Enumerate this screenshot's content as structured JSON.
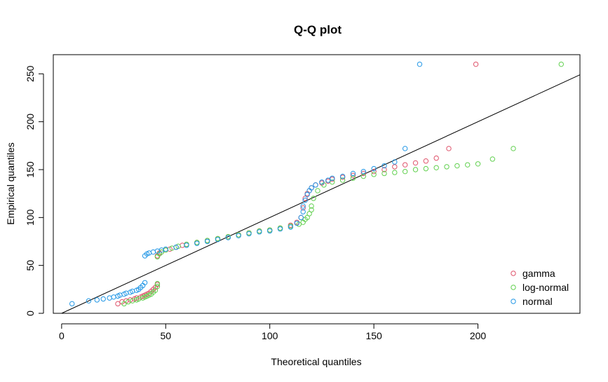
{
  "chart_data": {
    "type": "scatter",
    "title": "Q-Q plot",
    "xlabel": "Theoretical quantiles",
    "ylabel": "Empirical quantiles",
    "xlim": [
      -4,
      249
    ],
    "ylim": [
      0,
      270
    ],
    "xticks": [
      0,
      50,
      100,
      150,
      200
    ],
    "yticks": [
      0,
      50,
      100,
      150,
      200,
      250
    ],
    "grid": false,
    "legend_position": "bottom-right",
    "reference_line": {
      "from": [
        0,
        0
      ],
      "to": [
        249,
        249
      ],
      "color": "#000000"
    },
    "series": [
      {
        "name": "gamma",
        "color": "#DF536B",
        "points": [
          [
            27,
            10
          ],
          [
            29,
            12
          ],
          [
            31,
            13
          ],
          [
            33,
            14
          ],
          [
            35,
            15
          ],
          [
            36,
            16
          ],
          [
            38,
            17
          ],
          [
            39,
            18
          ],
          [
            40,
            19
          ],
          [
            41,
            20
          ],
          [
            42,
            21
          ],
          [
            43,
            23
          ],
          [
            44,
            25
          ],
          [
            45,
            27
          ],
          [
            46,
            30
          ],
          [
            46,
            60
          ],
          [
            47,
            63
          ],
          [
            48,
            64
          ],
          [
            50,
            66
          ],
          [
            52,
            67
          ],
          [
            55,
            69
          ],
          [
            58,
            71
          ],
          [
            60,
            72
          ],
          [
            65,
            74
          ],
          [
            70,
            76
          ],
          [
            75,
            78
          ],
          [
            80,
            80
          ],
          [
            85,
            82
          ],
          [
            90,
            84
          ],
          [
            95,
            86
          ],
          [
            100,
            87
          ],
          [
            105,
            89
          ],
          [
            110,
            92
          ],
          [
            113,
            95
          ],
          [
            115,
            100
          ],
          [
            116,
            110
          ],
          [
            117,
            120
          ],
          [
            118,
            125
          ],
          [
            119,
            128
          ],
          [
            120,
            131
          ],
          [
            122,
            134
          ],
          [
            125,
            136
          ],
          [
            128,
            138
          ],
          [
            130,
            140
          ],
          [
            135,
            142
          ],
          [
            140,
            144
          ],
          [
            145,
            146
          ],
          [
            150,
            148
          ],
          [
            155,
            150
          ],
          [
            160,
            153
          ],
          [
            165,
            155
          ],
          [
            170,
            157
          ],
          [
            175,
            159
          ],
          [
            180,
            162
          ],
          [
            186,
            172
          ],
          [
            199,
            260
          ]
        ]
      },
      {
        "name": "log-normal",
        "color": "#61D04F",
        "points": [
          [
            30,
            10
          ],
          [
            32,
            12
          ],
          [
            34,
            13
          ],
          [
            36,
            14
          ],
          [
            37,
            15
          ],
          [
            39,
            16
          ],
          [
            40,
            17
          ],
          [
            41,
            18
          ],
          [
            42,
            19
          ],
          [
            43,
            20
          ],
          [
            44,
            22
          ],
          [
            45,
            24
          ],
          [
            46,
            28
          ],
          [
            46,
            31
          ],
          [
            46,
            59
          ],
          [
            47,
            62
          ],
          [
            48,
            64
          ],
          [
            50,
            66
          ],
          [
            53,
            68
          ],
          [
            56,
            70
          ],
          [
            60,
            72
          ],
          [
            65,
            74
          ],
          [
            70,
            76
          ],
          [
            75,
            78
          ],
          [
            80,
            80
          ],
          [
            85,
            82
          ],
          [
            90,
            84
          ],
          [
            95,
            86
          ],
          [
            100,
            87
          ],
          [
            105,
            89
          ],
          [
            110,
            91
          ],
          [
            114,
            93
          ],
          [
            116,
            95
          ],
          [
            117,
            98
          ],
          [
            118,
            100
          ],
          [
            119,
            104
          ],
          [
            120,
            108
          ],
          [
            120,
            112
          ],
          [
            121,
            120
          ],
          [
            123,
            128
          ],
          [
            126,
            134
          ],
          [
            130,
            137
          ],
          [
            135,
            139
          ],
          [
            140,
            141
          ],
          [
            145,
            143
          ],
          [
            150,
            145
          ],
          [
            155,
            146
          ],
          [
            160,
            147
          ],
          [
            165,
            148
          ],
          [
            170,
            150
          ],
          [
            175,
            151
          ],
          [
            180,
            152
          ],
          [
            185,
            153
          ],
          [
            190,
            154
          ],
          [
            195,
            155
          ],
          [
            200,
            156
          ],
          [
            207,
            161
          ],
          [
            217,
            172
          ],
          [
            240,
            260
          ]
        ]
      },
      {
        "name": "normal",
        "color": "#2297E6",
        "points": [
          [
            5,
            10
          ],
          [
            13,
            13
          ],
          [
            17,
            14
          ],
          [
            20,
            15
          ],
          [
            23,
            16
          ],
          [
            25,
            17
          ],
          [
            27,
            18
          ],
          [
            28,
            19
          ],
          [
            30,
            20
          ],
          [
            31,
            21
          ],
          [
            33,
            22
          ],
          [
            34,
            23
          ],
          [
            36,
            24
          ],
          [
            37,
            25
          ],
          [
            38,
            27
          ],
          [
            39,
            29
          ],
          [
            40,
            32
          ],
          [
            40,
            60
          ],
          [
            41,
            62
          ],
          [
            42,
            63
          ],
          [
            44,
            64
          ],
          [
            46,
            65
          ],
          [
            48,
            66
          ],
          [
            50,
            67
          ],
          [
            55,
            69
          ],
          [
            60,
            71
          ],
          [
            65,
            73
          ],
          [
            70,
            75
          ],
          [
            75,
            77
          ],
          [
            80,
            79
          ],
          [
            85,
            81
          ],
          [
            90,
            83
          ],
          [
            95,
            85
          ],
          [
            100,
            86
          ],
          [
            105,
            88
          ],
          [
            110,
            90
          ],
          [
            113,
            94
          ],
          [
            115,
            100
          ],
          [
            116,
            106
          ],
          [
            116,
            112
          ],
          [
            117,
            118
          ],
          [
            118,
            124
          ],
          [
            119,
            128
          ],
          [
            120,
            131
          ],
          [
            122,
            134
          ],
          [
            125,
            137
          ],
          [
            128,
            139
          ],
          [
            130,
            141
          ],
          [
            135,
            143
          ],
          [
            140,
            146
          ],
          [
            145,
            148
          ],
          [
            150,
            151
          ],
          [
            155,
            154
          ],
          [
            160,
            158
          ],
          [
            165,
            172
          ],
          [
            172,
            260
          ]
        ]
      }
    ]
  }
}
